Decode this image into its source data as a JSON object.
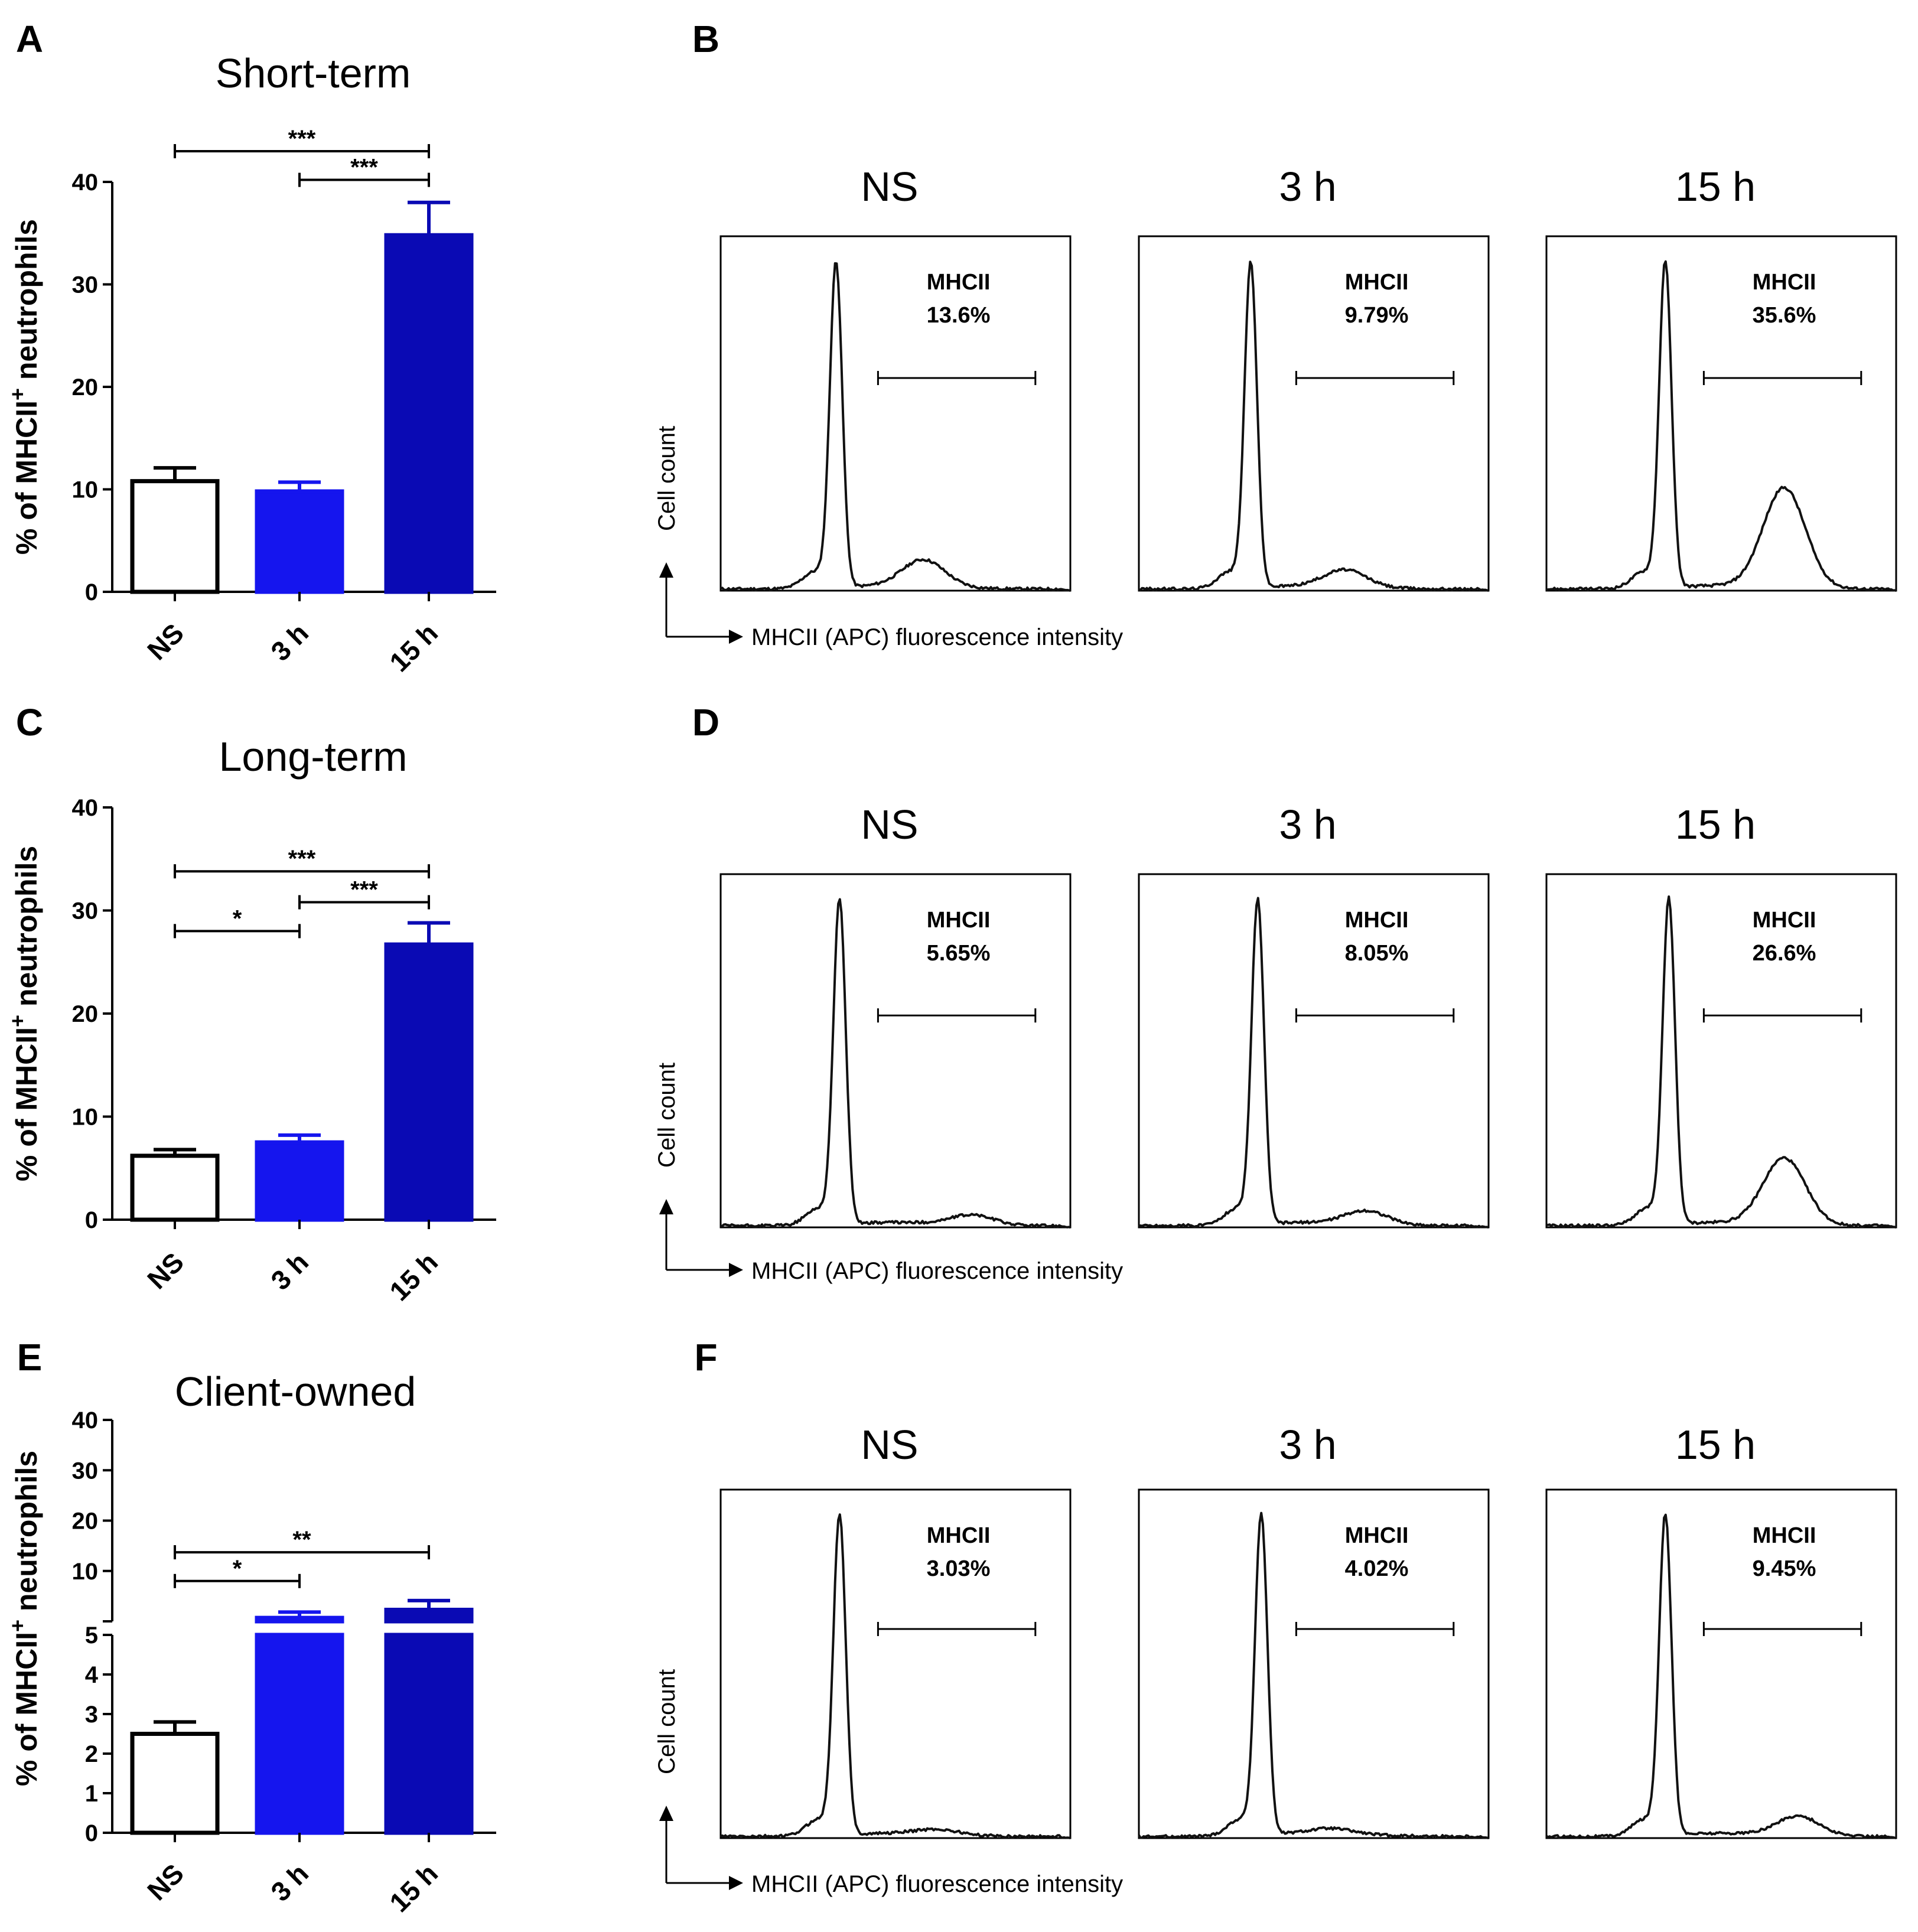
{
  "colors": {
    "ns": "#ffffff",
    "h3": "#1515ee",
    "h15": "#0a0ab4",
    "axis": "#000000",
    "plot_line": "#111111"
  },
  "bar_axis": {
    "ylabel_prefix": "% of MHCII",
    "ylabel_sup": "+",
    "ylabel_suffix": " neutrophils"
  },
  "hist_axis": {
    "ylabel": "Cell count",
    "xlabel": "MHCII (APC) fluorescence intensity",
    "gate_name": "MHCII"
  },
  "chart_data": [
    {
      "panel": "A",
      "type": "bar",
      "title": "Short-term",
      "categories": [
        "NS",
        "3 h",
        "15 h"
      ],
      "values": [
        10.8,
        9.8,
        34.8
      ],
      "errors": [
        1.3,
        0.9,
        3.2
      ],
      "ylim": [
        0,
        40
      ],
      "yticks": [
        "0",
        "10",
        "20",
        "30",
        "40"
      ],
      "significance": [
        {
          "from": 0,
          "to": 2,
          "label": "***",
          "level": 43
        },
        {
          "from": 1,
          "to": 2,
          "label": "***",
          "level": 40.2
        }
      ]
    },
    {
      "panel": "B",
      "type": "line",
      "subtype": "histogram",
      "samples": [
        {
          "title": "NS",
          "gate_pct": "13.6%",
          "peak_x": 0.33,
          "second_x": 0.58,
          "second_h": 0.08
        },
        {
          "title": "3 h",
          "gate_pct": "9.79%",
          "peak_x": 0.32,
          "second_x": 0.59,
          "second_h": 0.05
        },
        {
          "title": "15 h",
          "gate_pct": "35.6%",
          "peak_x": 0.34,
          "second_x": 0.68,
          "second_h": 0.3
        }
      ]
    },
    {
      "panel": "C",
      "type": "bar",
      "title": "Long-term",
      "categories": [
        "NS",
        "3 h",
        "15 h"
      ],
      "values": [
        6.2,
        7.5,
        26.7
      ],
      "errors": [
        0.6,
        0.7,
        2.1
      ],
      "ylim": [
        0,
        40
      ],
      "yticks": [
        "0",
        "10",
        "20",
        "30",
        "40"
      ],
      "significance": [
        {
          "from": 0,
          "to": 2,
          "label": "***",
          "level": 33.8
        },
        {
          "from": 1,
          "to": 2,
          "label": "***",
          "level": 30.8
        },
        {
          "from": 0,
          "to": 1,
          "label": "*",
          "level": 28
        }
      ]
    },
    {
      "panel": "D",
      "type": "line",
      "subtype": "histogram",
      "samples": [
        {
          "title": "NS",
          "gate_pct": "5.65%",
          "peak_x": 0.34,
          "second_x": 0.72,
          "second_h": 0.03
        },
        {
          "title": "3 h",
          "gate_pct": "8.05%",
          "peak_x": 0.34,
          "second_x": 0.65,
          "second_h": 0.04
        },
        {
          "title": "15 h",
          "gate_pct": "26.6%",
          "peak_x": 0.35,
          "second_x": 0.68,
          "second_h": 0.2
        }
      ]
    },
    {
      "panel": "E",
      "type": "bar",
      "title": "Client-owned",
      "categories": [
        "NS",
        "3 h",
        "15 h"
      ],
      "values": [
        2.5,
        5.6,
        7.0
      ],
      "errors": [
        0.3,
        1.0,
        1.6
      ],
      "axis_break": {
        "lower": [
          0,
          5
        ],
        "upper": [
          5,
          40
        ]
      },
      "yticks_lower": [
        "0",
        "1",
        "2",
        "3",
        "4",
        "5"
      ],
      "yticks_upper": [
        "10",
        "20",
        "30",
        "40"
      ],
      "significance": [
        {
          "from": 0,
          "to": 2,
          "label": "**",
          "level": 17
        },
        {
          "from": 0,
          "to": 1,
          "label": "*",
          "level": 12
        }
      ]
    },
    {
      "panel": "F",
      "type": "line",
      "subtype": "histogram",
      "samples": [
        {
          "title": "NS",
          "gate_pct": "3.03%",
          "peak_x": 0.34,
          "second_x": 0.62,
          "second_h": 0.015
        },
        {
          "title": "3 h",
          "gate_pct": "4.02%",
          "peak_x": 0.35,
          "second_x": 0.55,
          "second_h": 0.015
        },
        {
          "title": "15 h",
          "gate_pct": "9.45%",
          "peak_x": 0.34,
          "second_x": 0.72,
          "second_h": 0.06
        }
      ]
    }
  ]
}
